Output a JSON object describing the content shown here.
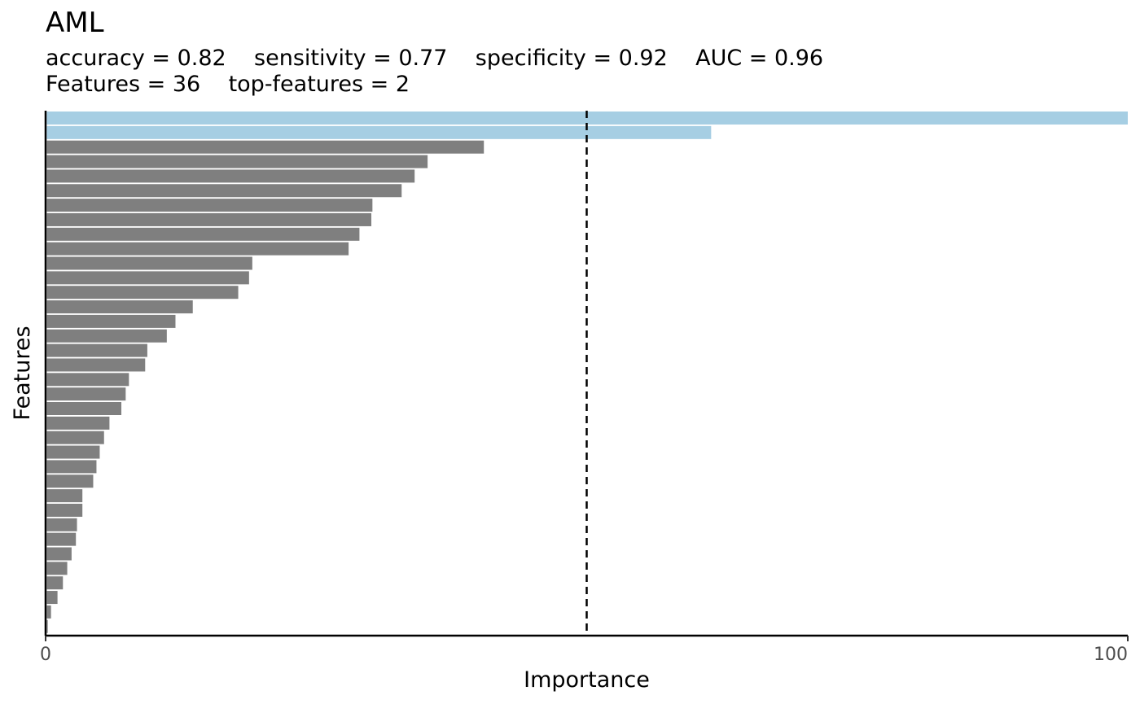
{
  "chart_data": {
    "type": "bar",
    "orientation": "horizontal",
    "title": "AML",
    "subtitle_lines": [
      "accuracy = 0.82    sensitivity = 0.77    specificity = 0.92    AUC = 0.96",
      "Features = 36    top-features = 2"
    ],
    "xlabel": "Importance",
    "ylabel": "Features",
    "xlim": [
      0,
      100
    ],
    "xticks": [
      "0",
      "100"
    ],
    "threshold": 50,
    "top_features": 2,
    "values": [
      100,
      61.5,
      40.5,
      35.3,
      34.1,
      32.9,
      30.2,
      30.1,
      29.0,
      28.0,
      19.1,
      18.8,
      17.8,
      13.6,
      12.0,
      11.2,
      9.4,
      9.2,
      7.7,
      7.4,
      7.0,
      5.9,
      5.4,
      5.0,
      4.7,
      4.4,
      3.4,
      3.4,
      2.9,
      2.8,
      2.4,
      2.0,
      1.6,
      1.1,
      0.5,
      0.2
    ],
    "colors": {
      "top": "#a6cee3",
      "rest": "#7f7f7f",
      "axis": "#000000",
      "tick_label": "#4d4d4d"
    },
    "grid": false
  }
}
